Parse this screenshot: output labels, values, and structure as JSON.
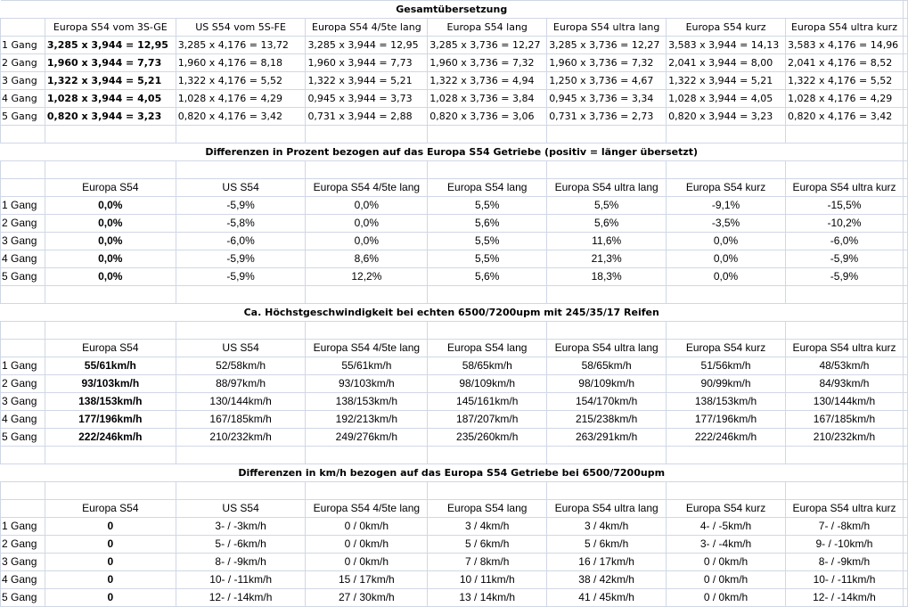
{
  "gears": [
    "1 Gang",
    "2 Gang",
    "3 Gang",
    "4 Gang",
    "5 Gang"
  ],
  "sections": [
    {
      "title": "Gesamtübersetzung",
      "headers": [
        "Europa S54 vom 3S-GE",
        "US S54 vom 5S-FE",
        "Europa S54 4/5te lang",
        "Europa S54 lang",
        "Europa S54 ultra lang",
        "Europa S54 kurz",
        "Europa S54 ultra kurz"
      ],
      "rows": [
        [
          "3,285 x 3,944 = 12,95",
          "3,285 x 4,176 = 13,72",
          "3,285 x 3,944 = 12,95",
          "3,285 x 3,736 = 12,27",
          "3,285 x 3,736 = 12,27",
          "3,583 x 3,944 = 14,13",
          "3,583 x 4,176 = 14,96"
        ],
        [
          "1,960 x 3,944 = 7,73",
          "1,960 x 4,176 = 8,18",
          "1,960 x 3,944 = 7,73",
          "1,960 x 3,736 = 7,32",
          "1,960 x 3,736 = 7,32",
          "2,041 x 3,944 = 8,00",
          "2,041 x 4,176 = 8,52"
        ],
        [
          "1,322 x 3,944 = 5,21",
          "1,322 x 4,176 = 5,52",
          "1,322 x 3,944 = 5,21",
          "1,322 x 3,736 = 4,94",
          "1,250 x 3,736 = 4,67",
          "1,322 x 3,944 = 5,21",
          "1,322 x 4,176 = 5,52"
        ],
        [
          "1,028 x 3,944 = 4,05",
          "1,028 x 4,176 = 4,29",
          "0,945 x 3,944 = 3,73",
          "1,028 x 3,736 = 3,84",
          "0,945 x 3,736 = 3,34",
          "1,028 x 3,944 = 4,05",
          "1,028 x 4,176 = 4,29"
        ],
        [
          "0,820 x 3,944 = 3,23",
          "0,820 x 4,176 = 3,42",
          "0,731 x 3,944 = 2,88",
          "0,820 x 3,736 = 3,06",
          "0,731 x 3,736 = 2,73",
          "0,820 x 3,944 = 3,23",
          "0,820 x 4,176 = 3,42"
        ]
      ]
    },
    {
      "title": "Differenzen in Prozent bezogen auf das Europa S54 Getriebe (positiv = länger übersetzt)",
      "headers": [
        "Europa S54",
        "US S54",
        "Europa S54 4/5te lang",
        "Europa S54 lang",
        "Europa S54 ultra lang",
        "Europa S54 kurz",
        "Europa S54 ultra kurz"
      ],
      "rows": [
        [
          "0,0%",
          "-5,9%",
          "0,0%",
          "5,5%",
          "5,5%",
          "-9,1%",
          "-15,5%"
        ],
        [
          "0,0%",
          "-5,8%",
          "0,0%",
          "5,6%",
          "5,6%",
          "-3,5%",
          "-10,2%"
        ],
        [
          "0,0%",
          "-6,0%",
          "0,0%",
          "5,5%",
          "11,6%",
          "0,0%",
          "-6,0%"
        ],
        [
          "0,0%",
          "-5,9%",
          "8,6%",
          "5,5%",
          "21,3%",
          "0,0%",
          "-5,9%"
        ],
        [
          "0,0%",
          "-5,9%",
          "12,2%",
          "5,6%",
          "18,3%",
          "0,0%",
          "-5,9%"
        ]
      ]
    },
    {
      "title": "Ca. Höchstgeschwindigkeit bei echten 6500/7200upm mit 245/35/17 Reifen",
      "headers": [
        "Europa S54",
        "US S54",
        "Europa S54 4/5te lang",
        "Europa S54 lang",
        "Europa S54 ultra lang",
        "Europa S54 kurz",
        "Europa S54 ultra kurz"
      ],
      "rows": [
        [
          "55/61km/h",
          "52/58km/h",
          "55/61km/h",
          "58/65km/h",
          "58/65km/h",
          "51/56km/h",
          "48/53km/h"
        ],
        [
          "93/103km/h",
          "88/97km/h",
          "93/103km/h",
          "98/109km/h",
          "98/109km/h",
          "90/99km/h",
          "84/93km/h"
        ],
        [
          "138/153km/h",
          "130/144km/h",
          "138/153km/h",
          "145/161km/h",
          "154/170km/h",
          "138/153km/h",
          "130/144km/h"
        ],
        [
          "177/196km/h",
          "167/185km/h",
          "192/213km/h",
          "187/207km/h",
          "215/238km/h",
          "177/196km/h",
          "167/185km/h"
        ],
        [
          "222/246km/h",
          "210/232km/h",
          "249/276km/h",
          "235/260km/h",
          "263/291km/h",
          "222/246km/h",
          "210/232km/h"
        ]
      ]
    },
    {
      "title": "Differenzen in km/h bezogen auf das Europa S54 Getriebe bei 6500/7200upm",
      "headers": [
        "Europa S54",
        "US S54",
        "Europa S54 4/5te lang",
        "Europa S54 lang",
        "Europa S54 ultra lang",
        "Europa S54 kurz",
        "Europa S54 ultra kurz"
      ],
      "rows": [
        [
          "0",
          "3- / -3km/h",
          "0 / 0km/h",
          "3 / 4km/h",
          "3 / 4km/h",
          "4- / -5km/h",
          "7- / -8km/h"
        ],
        [
          "0",
          "5- / -6km/h",
          "0 / 0km/h",
          "5 / 6km/h",
          "5 / 6km/h",
          "3- / -4km/h",
          "9- / -10km/h"
        ],
        [
          "0",
          "8- / -9km/h",
          "0 / 0km/h",
          "7 / 8km/h",
          "16 / 17km/h",
          "0 / 0km/h",
          "8- / -9km/h"
        ],
        [
          "0",
          "10- / -11km/h",
          "15 / 17km/h",
          "10 / 11km/h",
          "38 / 42km/h",
          "0 / 0km/h",
          "10- / -11km/h"
        ],
        [
          "0",
          "12- / -14km/h",
          "27 / 30km/h",
          "13 / 14km/h",
          "41 / 45km/h",
          "0 / 0km/h",
          "12- / -14km/h"
        ]
      ]
    }
  ]
}
